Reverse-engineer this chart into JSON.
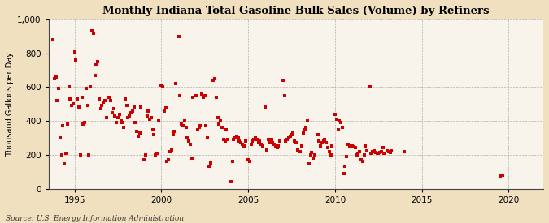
{
  "title": "Monthly Indiana Total Gasoline Bulk Sales (Volume) by Refiners",
  "ylabel": "Thousand Gallons per Day",
  "source": "Source: U.S. Energy Information Administration",
  "background_color": "#f0e0c0",
  "plot_background": "#f8f4ec",
  "marker_color": "#cc0000",
  "marker_size": 8,
  "xlim": [
    1993.5,
    2022
  ],
  "ylim": [
    0,
    1000
  ],
  "yticks": [
    0,
    200,
    400,
    600,
    800,
    1000
  ],
  "xticks": [
    1995,
    2000,
    2005,
    2010,
    2015,
    2020
  ],
  "data": [
    [
      1993.75,
      880
    ],
    [
      1993.83,
      650
    ],
    [
      1993.92,
      660
    ],
    [
      1994.0,
      520
    ],
    [
      1994.08,
      590
    ],
    [
      1994.17,
      300
    ],
    [
      1994.25,
      200
    ],
    [
      1994.33,
      370
    ],
    [
      1994.42,
      145
    ],
    [
      1994.5,
      210
    ],
    [
      1994.58,
      380
    ],
    [
      1994.67,
      600
    ],
    [
      1994.75,
      530
    ],
    [
      1994.83,
      490
    ],
    [
      1994.92,
      500
    ],
    [
      1995.0,
      810
    ],
    [
      1995.08,
      760
    ],
    [
      1995.17,
      530
    ],
    [
      1995.25,
      480
    ],
    [
      1995.33,
      200
    ],
    [
      1995.42,
      540
    ],
    [
      1995.5,
      380
    ],
    [
      1995.58,
      390
    ],
    [
      1995.67,
      590
    ],
    [
      1995.75,
      490
    ],
    [
      1995.83,
      200
    ],
    [
      1995.92,
      600
    ],
    [
      1996.0,
      930
    ],
    [
      1996.08,
      920
    ],
    [
      1996.17,
      670
    ],
    [
      1996.25,
      730
    ],
    [
      1996.33,
      750
    ],
    [
      1996.42,
      530
    ],
    [
      1996.5,
      470
    ],
    [
      1996.58,
      490
    ],
    [
      1996.67,
      510
    ],
    [
      1996.75,
      520
    ],
    [
      1996.83,
      420
    ],
    [
      1997.0,
      540
    ],
    [
      1997.08,
      520
    ],
    [
      1997.17,
      450
    ],
    [
      1997.25,
      470
    ],
    [
      1997.33,
      430
    ],
    [
      1997.42,
      390
    ],
    [
      1997.5,
      420
    ],
    [
      1997.58,
      440
    ],
    [
      1997.67,
      400
    ],
    [
      1997.75,
      390
    ],
    [
      1997.83,
      360
    ],
    [
      1997.92,
      530
    ],
    [
      1998.0,
      490
    ],
    [
      1998.08,
      420
    ],
    [
      1998.17,
      430
    ],
    [
      1998.25,
      450
    ],
    [
      1998.33,
      460
    ],
    [
      1998.42,
      480
    ],
    [
      1998.5,
      390
    ],
    [
      1998.58,
      340
    ],
    [
      1998.67,
      310
    ],
    [
      1998.75,
      330
    ],
    [
      1998.83,
      480
    ],
    [
      1999.0,
      170
    ],
    [
      1999.08,
      200
    ],
    [
      1999.17,
      430
    ],
    [
      1999.25,
      460
    ],
    [
      1999.33,
      410
    ],
    [
      1999.42,
      420
    ],
    [
      1999.5,
      350
    ],
    [
      1999.58,
      320
    ],
    [
      1999.67,
      200
    ],
    [
      1999.75,
      210
    ],
    [
      1999.83,
      400
    ],
    [
      2000.0,
      610
    ],
    [
      2000.08,
      600
    ],
    [
      2000.17,
      460
    ],
    [
      2000.25,
      475
    ],
    [
      2000.33,
      160
    ],
    [
      2000.42,
      170
    ],
    [
      2000.5,
      220
    ],
    [
      2000.58,
      230
    ],
    [
      2000.67,
      320
    ],
    [
      2000.75,
      340
    ],
    [
      2000.83,
      620
    ],
    [
      2001.0,
      900
    ],
    [
      2001.08,
      550
    ],
    [
      2001.17,
      380
    ],
    [
      2001.25,
      370
    ],
    [
      2001.33,
      400
    ],
    [
      2001.42,
      360
    ],
    [
      2001.5,
      300
    ],
    [
      2001.58,
      280
    ],
    [
      2001.67,
      260
    ],
    [
      2001.75,
      180
    ],
    [
      2001.83,
      540
    ],
    [
      2002.0,
      550
    ],
    [
      2002.08,
      350
    ],
    [
      2002.17,
      360
    ],
    [
      2002.25,
      370
    ],
    [
      2002.33,
      560
    ],
    [
      2002.42,
      540
    ],
    [
      2002.5,
      550
    ],
    [
      2002.58,
      370
    ],
    [
      2002.67,
      300
    ],
    [
      2002.75,
      130
    ],
    [
      2002.83,
      150
    ],
    [
      2003.0,
      640
    ],
    [
      2003.08,
      650
    ],
    [
      2003.17,
      540
    ],
    [
      2003.25,
      420
    ],
    [
      2003.33,
      380
    ],
    [
      2003.42,
      400
    ],
    [
      2003.5,
      360
    ],
    [
      2003.58,
      290
    ],
    [
      2003.67,
      280
    ],
    [
      2003.75,
      350
    ],
    [
      2003.83,
      290
    ],
    [
      2004.0,
      40
    ],
    [
      2004.08,
      160
    ],
    [
      2004.17,
      290
    ],
    [
      2004.25,
      300
    ],
    [
      2004.33,
      310
    ],
    [
      2004.42,
      300
    ],
    [
      2004.5,
      280
    ],
    [
      2004.58,
      270
    ],
    [
      2004.67,
      260
    ],
    [
      2004.75,
      250
    ],
    [
      2004.83,
      280
    ],
    [
      2005.0,
      170
    ],
    [
      2005.08,
      160
    ],
    [
      2005.17,
      260
    ],
    [
      2005.25,
      280
    ],
    [
      2005.33,
      290
    ],
    [
      2005.42,
      300
    ],
    [
      2005.5,
      290
    ],
    [
      2005.58,
      270
    ],
    [
      2005.67,
      280
    ],
    [
      2005.75,
      260
    ],
    [
      2005.83,
      250
    ],
    [
      2006.0,
      480
    ],
    [
      2006.08,
      230
    ],
    [
      2006.17,
      290
    ],
    [
      2006.25,
      270
    ],
    [
      2006.33,
      290
    ],
    [
      2006.42,
      270
    ],
    [
      2006.5,
      260
    ],
    [
      2006.58,
      250
    ],
    [
      2006.67,
      240
    ],
    [
      2006.75,
      250
    ],
    [
      2006.83,
      280
    ],
    [
      2007.0,
      640
    ],
    [
      2007.08,
      550
    ],
    [
      2007.17,
      280
    ],
    [
      2007.25,
      290
    ],
    [
      2007.33,
      300
    ],
    [
      2007.42,
      310
    ],
    [
      2007.5,
      320
    ],
    [
      2007.58,
      330
    ],
    [
      2007.67,
      280
    ],
    [
      2007.75,
      270
    ],
    [
      2007.83,
      230
    ],
    [
      2008.0,
      220
    ],
    [
      2008.08,
      250
    ],
    [
      2008.17,
      330
    ],
    [
      2008.25,
      350
    ],
    [
      2008.33,
      360
    ],
    [
      2008.42,
      400
    ],
    [
      2008.5,
      145
    ],
    [
      2008.58,
      200
    ],
    [
      2008.67,
      215
    ],
    [
      2008.75,
      180
    ],
    [
      2008.83,
      200
    ],
    [
      2009.0,
      320
    ],
    [
      2009.08,
      280
    ],
    [
      2009.17,
      250
    ],
    [
      2009.25,
      270
    ],
    [
      2009.33,
      280
    ],
    [
      2009.42,
      290
    ],
    [
      2009.5,
      270
    ],
    [
      2009.58,
      240
    ],
    [
      2009.67,
      220
    ],
    [
      2009.75,
      200
    ],
    [
      2009.83,
      250
    ],
    [
      2010.0,
      440
    ],
    [
      2010.08,
      410
    ],
    [
      2010.17,
      350
    ],
    [
      2010.25,
      400
    ],
    [
      2010.33,
      390
    ],
    [
      2010.42,
      360
    ],
    [
      2010.5,
      90
    ],
    [
      2010.58,
      130
    ],
    [
      2010.67,
      190
    ],
    [
      2010.75,
      260
    ],
    [
      2010.83,
      250
    ],
    [
      2011.0,
      250
    ],
    [
      2011.08,
      245
    ],
    [
      2011.17,
      240
    ],
    [
      2011.25,
      200
    ],
    [
      2011.33,
      210
    ],
    [
      2011.42,
      220
    ],
    [
      2011.5,
      170
    ],
    [
      2011.58,
      160
    ],
    [
      2011.67,
      200
    ],
    [
      2011.75,
      250
    ],
    [
      2011.83,
      225
    ],
    [
      2012.0,
      600
    ],
    [
      2012.08,
      210
    ],
    [
      2012.17,
      220
    ],
    [
      2012.25,
      225
    ],
    [
      2012.33,
      215
    ],
    [
      2012.42,
      210
    ],
    [
      2012.5,
      210
    ],
    [
      2012.58,
      215
    ],
    [
      2012.67,
      220
    ],
    [
      2012.75,
      240
    ],
    [
      2012.83,
      210
    ],
    [
      2013.0,
      225
    ],
    [
      2013.08,
      220
    ],
    [
      2013.17,
      215
    ],
    [
      2013.25,
      225
    ],
    [
      2014.0,
      220
    ],
    [
      2019.5,
      75
    ],
    [
      2019.67,
      80
    ]
  ]
}
